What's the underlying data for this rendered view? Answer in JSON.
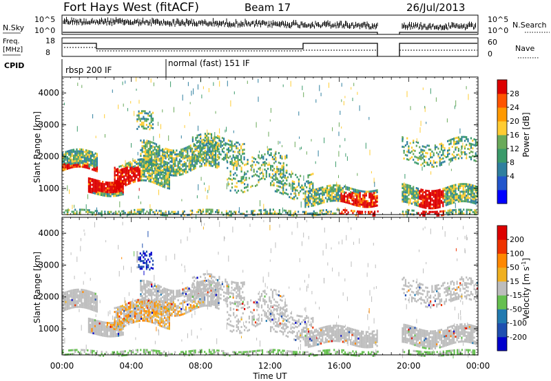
{
  "header": {
    "station": "Fort Hays West (fitACF)",
    "beam": "Beam 17",
    "date": "26/Jul/2013"
  },
  "top_panels": {
    "nsky_label": "N.Sky",
    "nsky_ticks": [
      "10^5",
      "10^0"
    ],
    "nsky_right_ticks": [
      "10^5",
      "10^0"
    ],
    "nsearch_label": "N.Search",
    "freq_label": "Freq.",
    "freq_unit": "[MHz]",
    "freq_ticks": [
      "18",
      "8"
    ],
    "nave_ticks": [
      "60",
      "0"
    ],
    "nave_label": "Nave",
    "cpid_label": "CPID",
    "cpid_segments": [
      {
        "label": "rbsp 200 IF",
        "start_hour": 0,
        "end_hour": 6
      },
      {
        "label": "normal (fast) 151 IF",
        "start_hour": 6,
        "end_hour": 24
      }
    ]
  },
  "chart_data": [
    {
      "type": "heatmap",
      "name": "power",
      "ylabel": "Slant Range [km]",
      "xlabel": "",
      "xlim": [
        0,
        24
      ],
      "ylim": [
        180,
        4500
      ],
      "y_ticks": [
        1000,
        2000,
        3000,
        4000
      ],
      "colorbar": {
        "label": "Power [dB]",
        "ticks": [
          "28",
          "24",
          "20",
          "16",
          "12",
          "8",
          "4"
        ],
        "colors": [
          "#0000ff",
          "#2255cc",
          "#2f7f9f",
          "#3a9a6a",
          "#6aaa5a",
          "#ffcc33",
          "#ff9900",
          "#ff5500",
          "#dd0000"
        ]
      },
      "data_gap_hours": [
        18.2,
        19.6
      ]
    },
    {
      "type": "heatmap",
      "name": "velocity",
      "ylabel": "Slant Range [km]",
      "xlabel": "Time UT",
      "xlim": [
        0,
        24
      ],
      "ylim": [
        180,
        4500
      ],
      "y_ticks": [
        1000,
        2000,
        3000,
        4000
      ],
      "x_ticks": [
        "00:00",
        "04:00",
        "08:00",
        "12:00",
        "16:00",
        "20:00",
        "00:00"
      ],
      "colorbar": {
        "label": "Velocity [m s",
        "label_exp": "-1",
        "label_end": "]",
        "ticks": [
          "200",
          "100",
          "50",
          "15",
          "-15",
          "-50",
          "-100",
          "-200"
        ],
        "colors": [
          "#0000cc",
          "#1f4fb0",
          "#227ab0",
          "#66c050",
          "#bdbdbd",
          "#f0b020",
          "#ff8800",
          "#ee3300",
          "#dd0000"
        ]
      },
      "data_gap_hours": [
        18.2,
        19.6
      ]
    }
  ]
}
